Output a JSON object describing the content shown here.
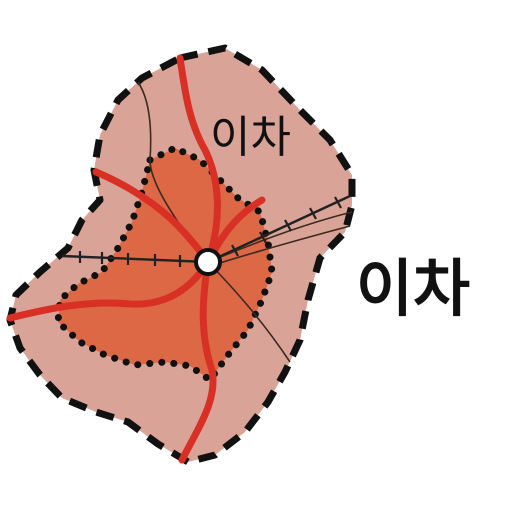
{
  "labels": {
    "inner": "이차",
    "outer": "이차"
  },
  "colors": {
    "outer_zone_fill": "#d9a497",
    "inner_zone_fill": "#dc6845",
    "major_road": "#d93025",
    "boundary": "#111111",
    "rail": "#222222",
    "center_node_fill": "#ffffff"
  }
}
